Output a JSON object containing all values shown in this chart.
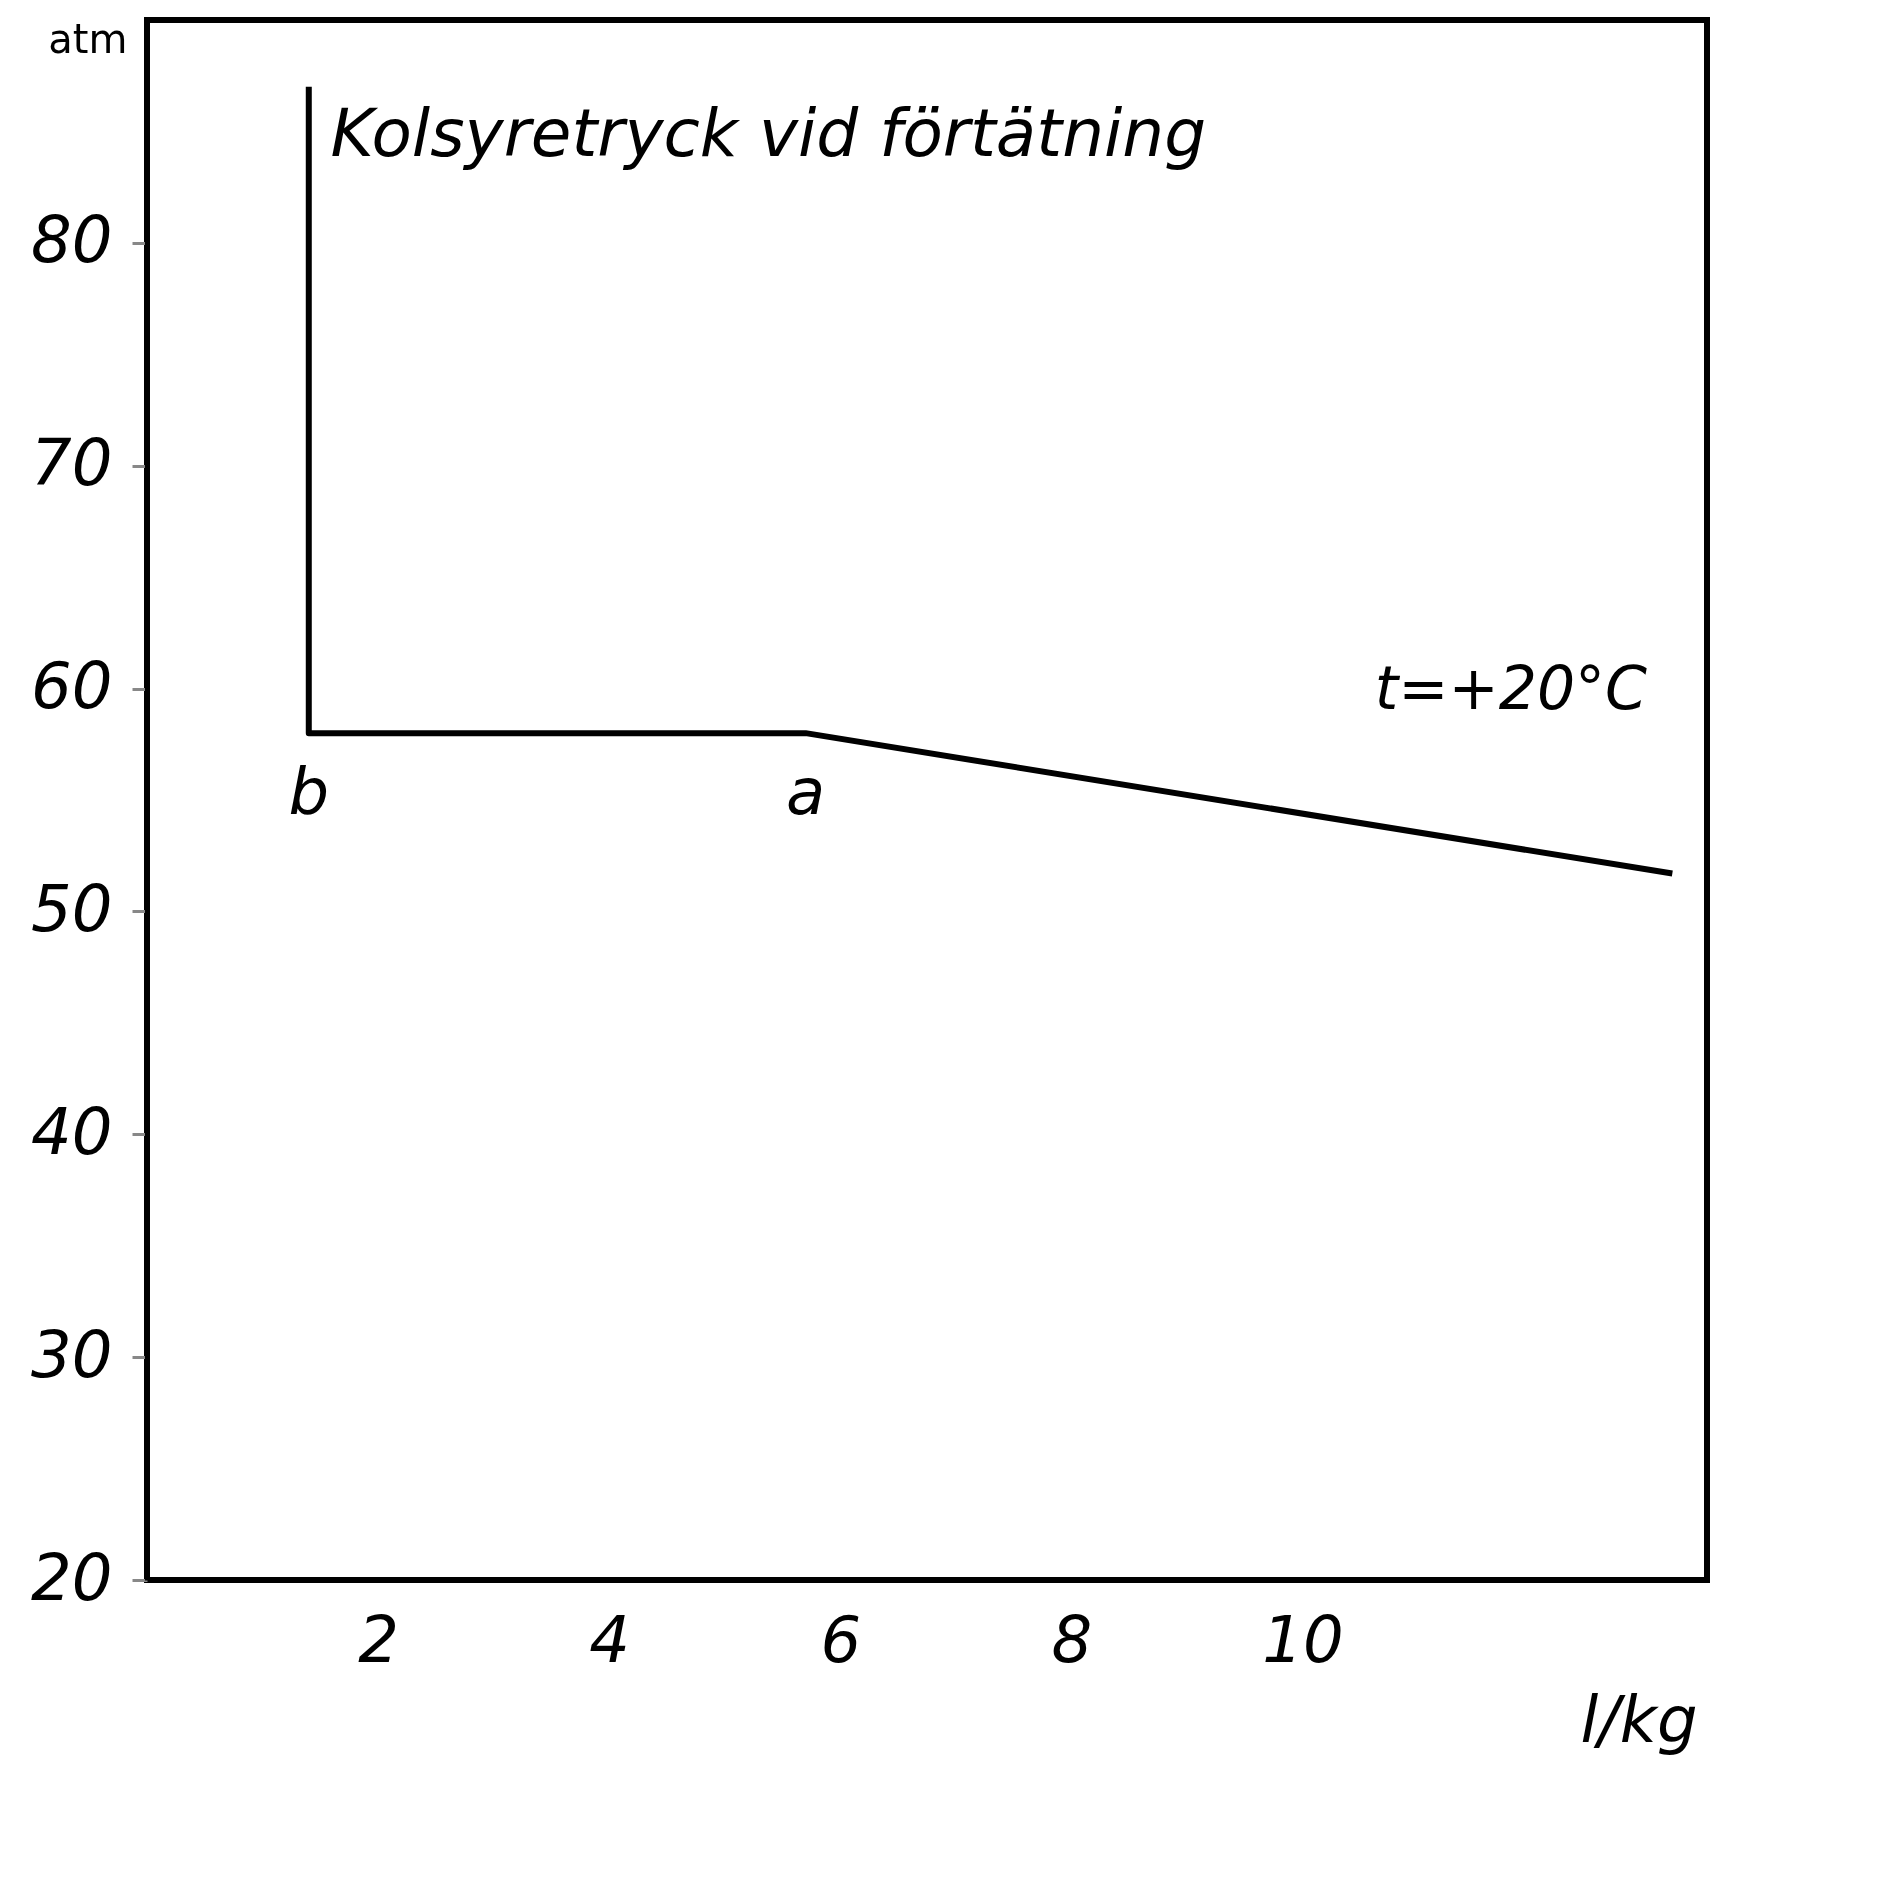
{
  "chart_data": {
    "type": "line",
    "title": "Kolsyretryck vid förtätning",
    "xlabel": "l/kg",
    "ylabel": "atm",
    "x": [
      1.4,
      1.4,
      5.7,
      13.2
    ],
    "series": [
      {
        "color": "#000000",
        "values": [
          87,
          58,
          58,
          51.7
        ]
      }
    ],
    "xlim": [
      0,
      13.5
    ],
    "ylim": [
      20,
      90
    ],
    "xticks": [
      2,
      4,
      6,
      8,
      10
    ],
    "yticks": [
      20,
      30,
      40,
      50,
      60,
      70,
      80
    ],
    "grid": false,
    "annotations": [
      {
        "text": "b",
        "x": 1.4,
        "y": 58
      },
      {
        "text": "a",
        "x": 5.7,
        "y": 58
      },
      "t=+20°C"
    ]
  }
}
